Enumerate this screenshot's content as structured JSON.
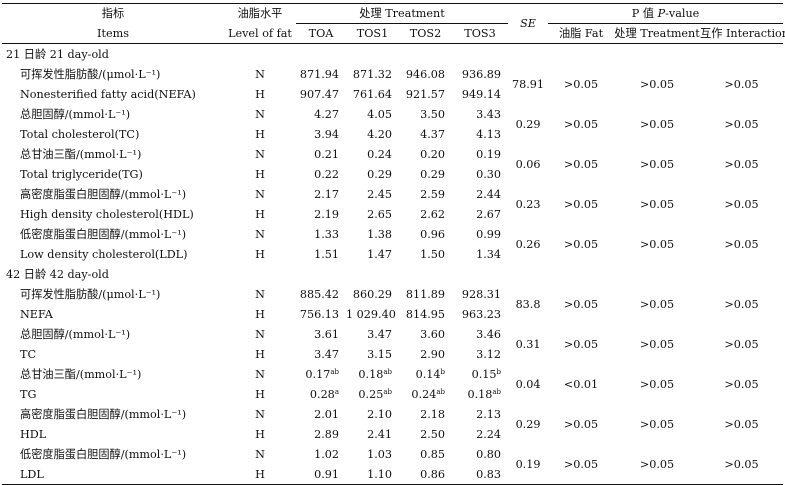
{
  "header": {
    "item_cn": "指标",
    "item_en": "Items",
    "fat_cn": "油脂水平",
    "fat_en": "Level of fat",
    "treatment_group": "处理 Treatment",
    "treatments": [
      "TOA",
      "TOS1",
      "TOS2",
      "TOS3"
    ],
    "se": "SE",
    "pvalue_prefix": "P 值 ",
    "pvalue_italic": "P",
    "pvalue_suffix": "-value",
    "p_cols": [
      "油脂 Fat",
      "处理 Treatment",
      "互作 Interaction"
    ]
  },
  "sections": [
    {
      "title": "21 日龄 21 day-old",
      "groups": [
        {
          "rows": [
            {
              "label": "可挥发性脂肪酸/(μmol·L⁻¹)",
              "fat": "N",
              "values": [
                "871.94",
                "871.32",
                "946.08",
                "936.89"
              ],
              "sups": [
                "",
                "",
                "",
                ""
              ]
            },
            {
              "label": "Nonesterified fatty acid(NEFA)",
              "fat": "H",
              "values": [
                "907.47",
                "761.64",
                "921.57",
                "949.14"
              ],
              "sups": [
                "",
                "",
                "",
                ""
              ]
            }
          ],
          "se": "78.91",
          "p_fat": ">0.05",
          "p_treatment": ">0.05",
          "p_interaction": ">0.05"
        },
        {
          "rows": [
            {
              "label": "总胆固醇/(mmol·L⁻¹)",
              "fat": "N",
              "values": [
                "4.27",
                "4.05",
                "3.50",
                "3.43"
              ],
              "sups": [
                "",
                "",
                "",
                ""
              ]
            },
            {
              "label": "Total cholesterol(TC)",
              "fat": "H",
              "values": [
                "3.94",
                "4.20",
                "4.37",
                "4.13"
              ],
              "sups": [
                "",
                "",
                "",
                ""
              ]
            }
          ],
          "se": "0.29",
          "p_fat": ">0.05",
          "p_treatment": ">0.05",
          "p_interaction": ">0.05"
        },
        {
          "rows": [
            {
              "label": "总甘油三酯/(mmol·L⁻¹)",
              "fat": "N",
              "values": [
                "0.21",
                "0.24",
                "0.20",
                "0.19"
              ],
              "sups": [
                "",
                "",
                "",
                ""
              ]
            },
            {
              "label": "Total triglyceride(TG)",
              "fat": "H",
              "values": [
                "0.22",
                "0.29",
                "0.29",
                "0.30"
              ],
              "sups": [
                "",
                "",
                "",
                ""
              ]
            }
          ],
          "se": "0.06",
          "p_fat": ">0.05",
          "p_treatment": ">0.05",
          "p_interaction": ">0.05"
        },
        {
          "rows": [
            {
              "label": "高密度脂蛋白胆固醇/(mmol·L⁻¹)",
              "fat": "N",
              "values": [
                "2.17",
                "2.45",
                "2.59",
                "2.44"
              ],
              "sups": [
                "",
                "",
                "",
                ""
              ]
            },
            {
              "label": "High density cholesterol(HDL)",
              "fat": "H",
              "values": [
                "2.19",
                "2.65",
                "2.62",
                "2.67"
              ],
              "sups": [
                "",
                "",
                "",
                ""
              ]
            }
          ],
          "se": "0.23",
          "p_fat": ">0.05",
          "p_treatment": ">0.05",
          "p_interaction": ">0.05"
        },
        {
          "rows": [
            {
              "label": "低密度脂蛋白胆固醇/(mmol·L⁻¹)",
              "fat": "N",
              "values": [
                "1.33",
                "1.38",
                "0.96",
                "0.99"
              ],
              "sups": [
                "",
                "",
                "",
                ""
              ]
            },
            {
              "label": "Low density cholesterol(LDL)",
              "fat": "H",
              "values": [
                "1.51",
                "1.47",
                "1.50",
                "1.34"
              ],
              "sups": [
                "",
                "",
                "",
                ""
              ]
            }
          ],
          "se": "0.26",
          "p_fat": ">0.05",
          "p_treatment": ">0.05",
          "p_interaction": ">0.05"
        }
      ]
    },
    {
      "title": "42 日龄 42 day-old",
      "groups": [
        {
          "rows": [
            {
              "label": "可挥发性脂肪酸/(μmol·L⁻¹)",
              "fat": "N",
              "values": [
                "885.42",
                "860.29",
                "811.89",
                "928.31"
              ],
              "sups": [
                "",
                "",
                "",
                ""
              ]
            },
            {
              "label": "NEFA",
              "fat": "H",
              "values": [
                "756.13",
                "1 029.40",
                "814.95",
                "963.23"
              ],
              "sups": [
                "",
                "",
                "",
                ""
              ]
            }
          ],
          "se": "83.8",
          "p_fat": ">0.05",
          "p_treatment": ">0.05",
          "p_interaction": ">0.05"
        },
        {
          "rows": [
            {
              "label": "总胆固醇/(mmol·L⁻¹)",
              "fat": "N",
              "values": [
                "3.61",
                "3.47",
                "3.60",
                "3.46"
              ],
              "sups": [
                "",
                "",
                "",
                ""
              ]
            },
            {
              "label": "TC",
              "fat": "H",
              "values": [
                "3.47",
                "3.15",
                "2.90",
                "3.12"
              ],
              "sups": [
                "",
                "",
                "",
                ""
              ]
            }
          ],
          "se": "0.31",
          "p_fat": ">0.05",
          "p_treatment": ">0.05",
          "p_interaction": ">0.05"
        },
        {
          "rows": [
            {
              "label": "总甘油三酯/(mmol·L⁻¹)",
              "fat": "N",
              "values": [
                "0.17",
                "0.18",
                "0.14",
                "0.15"
              ],
              "sups": [
                "ab",
                "ab",
                "b",
                "b"
              ]
            },
            {
              "label": "TG",
              "fat": "H",
              "values": [
                "0.28",
                "0.25",
                "0.24",
                "0.18"
              ],
              "sups": [
                "a",
                "ab",
                "ab",
                "ab"
              ]
            }
          ],
          "se": "0.04",
          "p_fat": "<0.01",
          "p_treatment": ">0.05",
          "p_interaction": ">0.05"
        },
        {
          "rows": [
            {
              "label": "高密度脂蛋白胆固醇/(mmol·L⁻¹)",
              "fat": "N",
              "values": [
                "2.01",
                "2.10",
                "2.18",
                "2.13"
              ],
              "sups": [
                "",
                "",
                "",
                ""
              ]
            },
            {
              "label": "HDL",
              "fat": "H",
              "values": [
                "2.89",
                "2.41",
                "2.50",
                "2.24"
              ],
              "sups": [
                "",
                "",
                "",
                ""
              ]
            }
          ],
          "se": "0.29",
          "p_fat": ">0.05",
          "p_treatment": ">0.05",
          "p_interaction": ">0.05"
        },
        {
          "rows": [
            {
              "label": "低密度脂蛋白胆固醇/(mmol·L⁻¹)",
              "fat": "N",
              "values": [
                "1.02",
                "1.03",
                "0.85",
                "0.80"
              ],
              "sups": [
                "",
                "",
                "",
                ""
              ]
            },
            {
              "label": "LDL",
              "fat": "H",
              "values": [
                "0.91",
                "1.10",
                "0.86",
                "0.83"
              ],
              "sups": [
                "",
                "",
                "",
                ""
              ]
            }
          ],
          "se": "0.19",
          "p_fat": ">0.05",
          "p_treatment": ">0.05",
          "p_interaction": ">0.05"
        }
      ]
    }
  ]
}
